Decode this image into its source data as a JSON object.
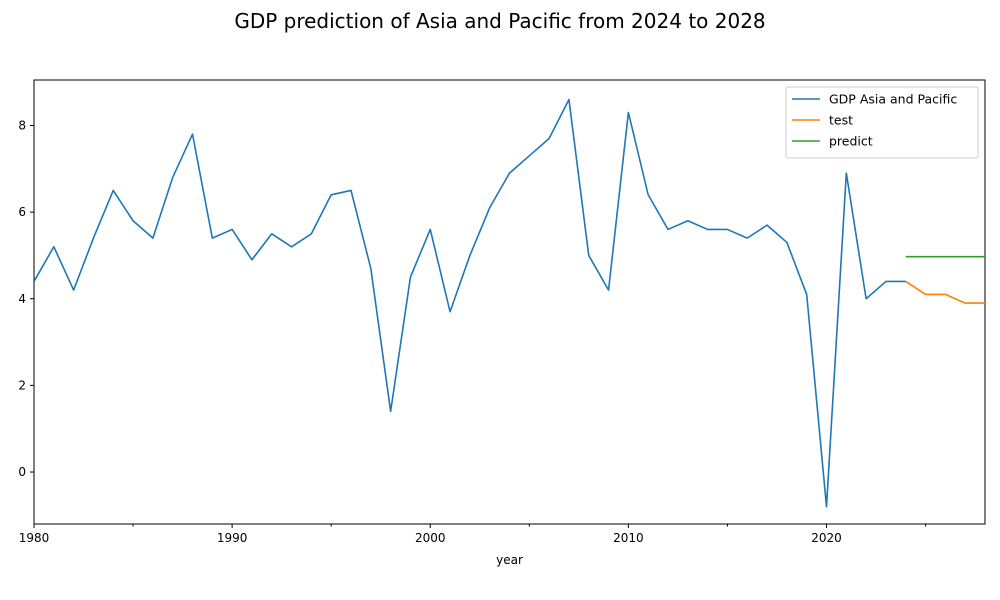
{
  "chart_data": {
    "type": "line",
    "title": "GDP prediction of Asia and Pacific from 2024 to 2028",
    "xlabel": "year",
    "ylabel": "",
    "xlim": [
      1980,
      2028
    ],
    "ylim": [
      -1.2,
      9.05
    ],
    "x_ticks": [
      1980,
      1990,
      2000,
      2010,
      2020
    ],
    "x_tick_labels": [
      "1980",
      "1990",
      "2000",
      "2010",
      "2020"
    ],
    "x_minor_ticks": [
      1985,
      1995,
      2005,
      2015,
      2025
    ],
    "y_ticks": [
      0,
      2,
      4,
      6,
      8
    ],
    "y_tick_labels": [
      "0",
      "2",
      "4",
      "6",
      "8"
    ],
    "grid": false,
    "legend_position": "top-right",
    "series": [
      {
        "name": "GDP Asia and Pacific",
        "color": "#1f77b4",
        "x": [
          1980,
          1981,
          1982,
          1983,
          1984,
          1985,
          1986,
          1987,
          1988,
          1989,
          1990,
          1991,
          1992,
          1993,
          1994,
          1995,
          1996,
          1997,
          1998,
          1999,
          2000,
          2001,
          2002,
          2003,
          2004,
          2005,
          2006,
          2007,
          2008,
          2009,
          2010,
          2011,
          2012,
          2013,
          2014,
          2015,
          2016,
          2017,
          2018,
          2019,
          2020,
          2021,
          2022,
          2023,
          2024
        ],
        "values": [
          4.4,
          5.2,
          4.2,
          5.4,
          6.5,
          5.8,
          5.4,
          6.8,
          7.8,
          5.4,
          5.6,
          4.9,
          5.5,
          5.2,
          5.5,
          6.4,
          6.5,
          4.7,
          1.4,
          4.5,
          5.6,
          3.7,
          5.0,
          6.1,
          6.9,
          7.3,
          7.7,
          8.6,
          5.0,
          4.2,
          8.3,
          6.4,
          5.6,
          5.8,
          5.6,
          5.6,
          5.4,
          5.7,
          5.3,
          4.1,
          -0.8,
          6.9,
          4.0,
          4.4,
          4.4
        ]
      },
      {
        "name": "test",
        "color": "#ff7f0e",
        "x": [
          2024,
          2025,
          2026,
          2027,
          2028
        ],
        "values": [
          4.4,
          4.1,
          4.1,
          3.9,
          3.9
        ]
      },
      {
        "name": "predict",
        "color": "#2ca02c",
        "x": [
          2024,
          2025,
          2026,
          2027,
          2028
        ],
        "values": [
          4.97,
          4.97,
          4.97,
          4.97,
          4.97
        ]
      }
    ]
  }
}
